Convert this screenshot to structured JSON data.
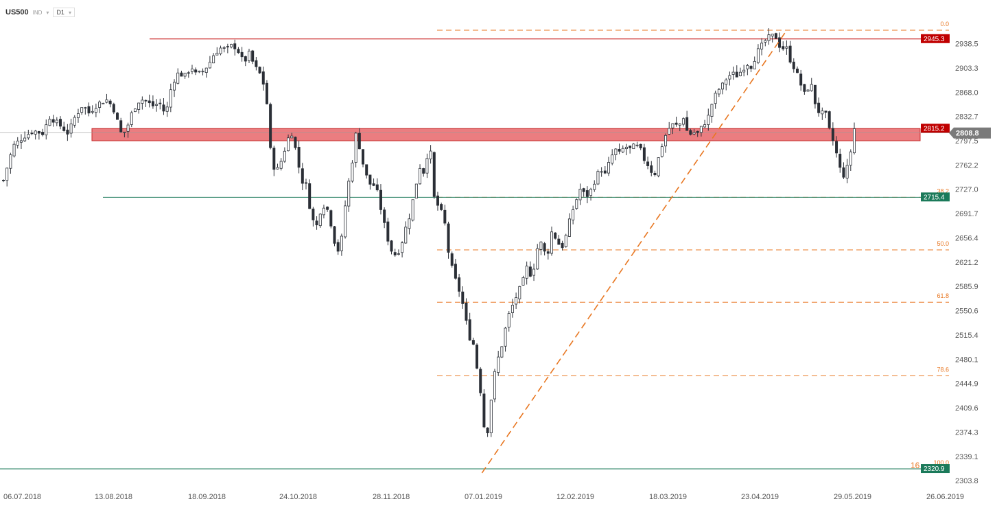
{
  "toolbar": {
    "symbol": "US500",
    "instrument_type": "IND",
    "timeframe": "D1",
    "dropdown_icon": "chevron-down-icon"
  },
  "colors": {
    "background": "#ffffff",
    "candle": "#2b2f36",
    "resistance_line": "#c00000",
    "support_line": "#1b7a5a",
    "fib": "#e87722",
    "zone_fill": "#e8666a",
    "zone_border": "#c62828",
    "current_price_badge": "#7a7a7a",
    "axis_text": "#555555"
  },
  "chart_data": {
    "type": "candlestick",
    "instrument": "US500",
    "timeframe": "D1",
    "x_ticks": [
      "06.07.2018",
      "13.08.2018",
      "18.09.2018",
      "24.10.2018",
      "28.11.2018",
      "07.01.2019",
      "12.02.2019",
      "18.03.2019",
      "23.04.2019",
      "29.05.2019",
      "26.06.2019"
    ],
    "y_ticks": [
      2938.5,
      2903.3,
      2868.0,
      2832.7,
      2797.5,
      2762.2,
      2727.0,
      2691.7,
      2656.4,
      2621.2,
      2585.9,
      2550.6,
      2515.4,
      2480.1,
      2444.9,
      2409.6,
      2374.3,
      2339.1,
      2303.8
    ],
    "ylim": [
      2298,
      2975
    ],
    "close_path": [
      [
        0,
        2740
      ],
      [
        8,
        2790
      ],
      [
        17,
        2804
      ],
      [
        25,
        2812
      ],
      [
        32,
        2808
      ],
      [
        38,
        2832
      ],
      [
        45,
        2822
      ],
      [
        53,
        2808
      ],
      [
        58,
        2830
      ],
      [
        65,
        2850
      ],
      [
        70,
        2838
      ],
      [
        78,
        2852
      ],
      [
        85,
        2857
      ],
      [
        90,
        2845
      ],
      [
        97,
        2805
      ],
      [
        101,
        2815
      ],
      [
        106,
        2842
      ],
      [
        112,
        2858
      ],
      [
        117,
        2855
      ],
      [
        122,
        2848
      ],
      [
        128,
        2852
      ],
      [
        133,
        2835
      ],
      [
        138,
        2880
      ],
      [
        143,
        2895
      ],
      [
        149,
        2892
      ],
      [
        154,
        2905
      ],
      [
        158,
        2893
      ],
      [
        163,
        2898
      ],
      [
        168,
        2908
      ],
      [
        173,
        2925
      ],
      [
        178,
        2932
      ],
      [
        183,
        2930
      ],
      [
        188,
        2937
      ],
      [
        192,
        2929
      ],
      [
        197,
        2910
      ],
      [
        201,
        2925
      ],
      [
        206,
        2905
      ],
      [
        210,
        2895
      ],
      [
        215,
        2870
      ],
      [
        219,
        2778
      ],
      [
        223,
        2750
      ],
      [
        228,
        2770
      ],
      [
        233,
        2800
      ],
      [
        236,
        2810
      ],
      [
        240,
        2780
      ],
      [
        244,
        2740
      ],
      [
        248,
        2733
      ],
      [
        252,
        2690
      ],
      [
        256,
        2670
      ],
      [
        261,
        2705
      ],
      [
        265,
        2700
      ],
      [
        270,
        2665
      ],
      [
        273,
        2632
      ],
      [
        277,
        2655
      ],
      [
        281,
        2720
      ],
      [
        285,
        2758
      ],
      [
        289,
        2810
      ],
      [
        292,
        2786
      ],
      [
        296,
        2752
      ],
      [
        300,
        2735
      ],
      [
        305,
        2732
      ],
      [
        309,
        2700
      ],
      [
        313,
        2668
      ],
      [
        317,
        2640
      ],
      [
        321,
        2632
      ],
      [
        325,
        2640
      ],
      [
        329,
        2668
      ],
      [
        333,
        2690
      ],
      [
        337,
        2725
      ],
      [
        341,
        2760
      ],
      [
        345,
        2750
      ],
      [
        349,
        2800
      ],
      [
        353,
        2712
      ],
      [
        357,
        2700
      ],
      [
        361,
        2685
      ],
      [
        365,
        2630
      ],
      [
        369,
        2602
      ],
      [
        373,
        2582
      ],
      [
        377,
        2555
      ],
      [
        381,
        2515
      ],
      [
        385,
        2502
      ],
      [
        389,
        2455
      ],
      [
        392,
        2420
      ],
      [
        395,
        2355
      ],
      [
        398,
        2395
      ],
      [
        401,
        2448
      ],
      [
        405,
        2480
      ],
      [
        409,
        2505
      ],
      [
        413,
        2540
      ],
      [
        417,
        2558
      ],
      [
        421,
        2575
      ],
      [
        425,
        2590
      ],
      [
        429,
        2615
      ],
      [
        433,
        2598
      ],
      [
        437,
        2640
      ],
      [
        441,
        2650
      ],
      [
        445,
        2625
      ],
      [
        449,
        2665
      ],
      [
        453,
        2655
      ],
      [
        457,
        2640
      ],
      [
        461,
        2660
      ],
      [
        465,
        2690
      ],
      [
        469,
        2710
      ],
      [
        473,
        2730
      ],
      [
        477,
        2715
      ],
      [
        481,
        2725
      ],
      [
        485,
        2742
      ],
      [
        489,
        2758
      ],
      [
        493,
        2748
      ],
      [
        497,
        2770
      ],
      [
        501,
        2785
      ],
      [
        505,
        2778
      ],
      [
        509,
        2790
      ],
      [
        513,
        2785
      ],
      [
        517,
        2790
      ],
      [
        521,
        2788
      ],
      [
        525,
        2770
      ],
      [
        529,
        2760
      ],
      [
        533,
        2745
      ],
      [
        537,
        2775
      ],
      [
        541,
        2800
      ],
      [
        545,
        2815
      ],
      [
        549,
        2822
      ],
      [
        553,
        2818
      ],
      [
        557,
        2832
      ],
      [
        561,
        2805
      ],
      [
        565,
        2810
      ],
      [
        569,
        2808
      ],
      [
        573,
        2820
      ],
      [
        577,
        2830
      ],
      [
        581,
        2855
      ],
      [
        585,
        2870
      ],
      [
        589,
        2878
      ],
      [
        593,
        2890
      ],
      [
        597,
        2895
      ],
      [
        601,
        2892
      ],
      [
        605,
        2900
      ],
      [
        609,
        2910
      ],
      [
        613,
        2905
      ],
      [
        617,
        2925
      ],
      [
        621,
        2935
      ],
      [
        625,
        2945
      ],
      [
        629,
        2950
      ],
      [
        633,
        2948
      ],
      [
        637,
        2930
      ],
      [
        641,
        2935
      ],
      [
        645,
        2912
      ],
      [
        649,
        2900
      ],
      [
        653,
        2880
      ],
      [
        657,
        2862
      ],
      [
        661,
        2885
      ],
      [
        665,
        2852
      ],
      [
        669,
        2835
      ],
      [
        673,
        2840
      ],
      [
        677,
        2810
      ],
      [
        681,
        2790
      ],
      [
        685,
        2758
      ],
      [
        689,
        2745
      ],
      [
        693,
        2770
      ],
      [
        697,
        2815
      ]
    ],
    "annotations": {
      "resistance": {
        "value": 2945.3,
        "label": "2945.3"
      },
      "support": {
        "value": 2715.4,
        "label": "2715.4"
      },
      "support_low": {
        "value": 2320.9,
        "label": "2320.9"
      },
      "zone": {
        "top": 2815.2,
        "bottom": 2797.5,
        "label": "2815.2"
      },
      "current_price": {
        "value": 2808.8,
        "label": "2808.8"
      },
      "fib_levels": [
        {
          "value": 2958.0,
          "label": "0.0"
        },
        {
          "value": 2715.4,
          "label": "38.2"
        },
        {
          "value": 2639.0,
          "label": "50.0"
        },
        {
          "value": 2563.0,
          "label": "61.8"
        },
        {
          "value": 2456.0,
          "label": "78.6"
        },
        {
          "value": 2320.9,
          "label": "100.0"
        }
      ],
      "fib_extension_mark": "16",
      "trend_line_from": {
        "x": 392,
        "value": 2315
      },
      "trend_line_to": {
        "x": 640,
        "value": 2958
      }
    }
  }
}
